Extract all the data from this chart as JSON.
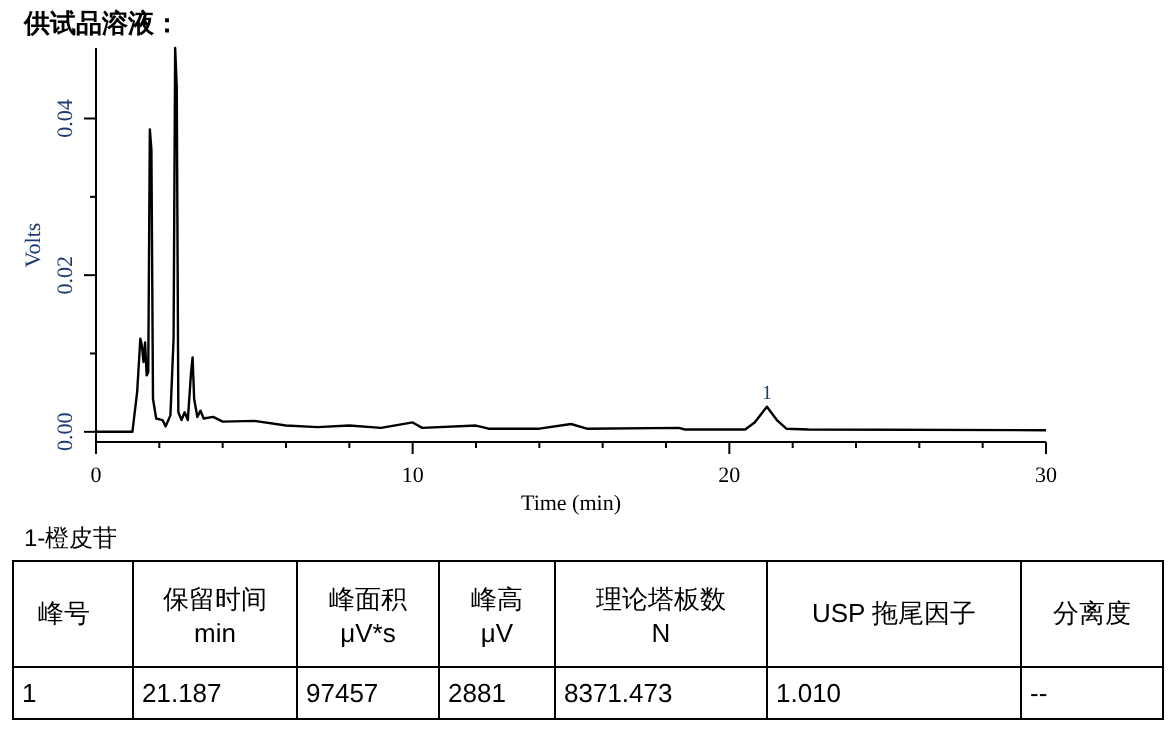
{
  "chart_data": [
    {
      "type": "line",
      "title": "供试品溶液：",
      "xlabel": "Time (min)",
      "ylabel": "Volts",
      "xlim": [
        0,
        30
      ],
      "ylim": [
        -0.0013,
        0.049
      ],
      "xticks": [
        0,
        10,
        20,
        30
      ],
      "yticks": [
        {
          "value": 0,
          "label": "0.00"
        },
        {
          "value": 0.01,
          "label": null
        },
        {
          "value": 0.02,
          "label": "0.02"
        },
        {
          "value": 0.03,
          "label": null
        },
        {
          "value": 0.04,
          "label": "0.04"
        }
      ],
      "grid": false,
      "marker": "none",
      "line_style": "solid",
      "annotations": [
        {
          "text": "1",
          "x": 21.187,
          "y": 0.0032
        }
      ],
      "series": [
        {
          "color": "#000000",
          "x": [
            0,
            1.15,
            1.3,
            1.4,
            1.45,
            1.5,
            1.55,
            1.6,
            1.65,
            1.7,
            1.75,
            1.8,
            1.9,
            2.1,
            2.2,
            2.35,
            2.45,
            2.5,
            2.55,
            2.6,
            2.7,
            2.8,
            2.9,
            3.0,
            3.05,
            3.1,
            3.2,
            3.3,
            3.4,
            3.7,
            4.0,
            5,
            6,
            7,
            8,
            9,
            10,
            10.3,
            12,
            12.4,
            14,
            15,
            15.5,
            18.4,
            18.6,
            20.5,
            20.8,
            21.187,
            21.5,
            21.8,
            22.5,
            30
          ],
          "values": [
            0,
            0,
            0.0051,
            0.0119,
            0.011,
            0.0089,
            0.0114,
            0.0072,
            0.0076,
            0.0386,
            0.036,
            0.0042,
            0.0017,
            0.0015,
            0.0007,
            0.0021,
            0.0119,
            0.049,
            0.044,
            0.0025,
            0.0015,
            0.0025,
            0.0015,
            0.0075,
            0.0095,
            0.0042,
            0.0019,
            0.0027,
            0.0017,
            0.0019,
            0.0013,
            0.0014,
            0.0008,
            0.0006,
            0.0008,
            0.0005,
            0.0012,
            0.0005,
            0.0008,
            0.0004,
            0.0004,
            0.001,
            0.0004,
            0.0005,
            0.0003,
            0.0003,
            0.0012,
            0.0032,
            0.0015,
            0.0004,
            0.0003,
            0.0002
          ]
        }
      ]
    },
    {
      "type": "other",
      "title": "1-橙皮苷",
      "categories": [
        "峰号",
        "保留时间\nmin",
        "峰面积\nμV*s",
        "峰高\nμV",
        "理论塔板数\nN",
        "USP 拖尾因子",
        "分离度"
      ],
      "annotations": [
        "1",
        "21.187",
        "97457",
        "2881",
        "8371.473",
        "1.010",
        "--"
      ]
    }
  ]
}
